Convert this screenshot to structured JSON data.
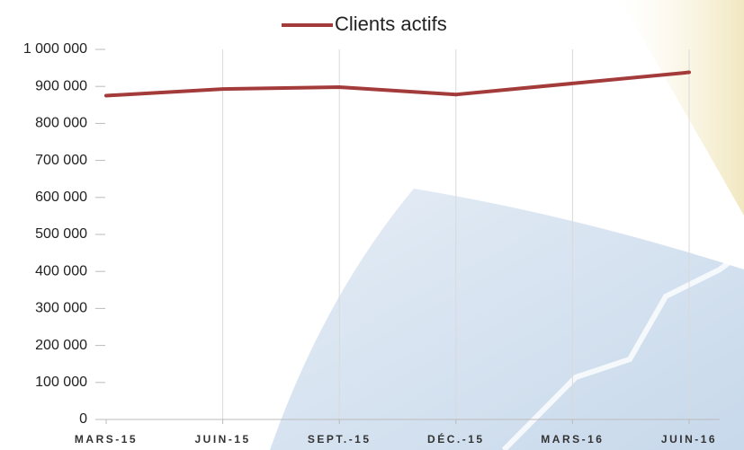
{
  "chart_data": {
    "type": "line",
    "categories": [
      "MARS-15",
      "JUIN-15",
      "SEPT.-15",
      "DÉC.-15",
      "MARS-16",
      "JUIN-16"
    ],
    "series": [
      {
        "name": "Clients actifs",
        "color": "#a33b3a",
        "values": [
          875000,
          893000,
          898000,
          878000,
          908000,
          938000
        ]
      }
    ],
    "ylim": [
      0,
      1000000
    ],
    "yticks": [
      0,
      {
        "value": 100000,
        "label": "100 000"
      },
      {
        "value": 200000,
        "label": "200 000"
      },
      {
        "value": 300000,
        "label": "300 000"
      },
      {
        "value": 400000,
        "label": "400 000"
      },
      {
        "value": 500000,
        "label": "500 000"
      },
      {
        "value": 600000,
        "label": "600 000"
      },
      {
        "value": 700000,
        "label": "700 000"
      },
      {
        "value": 800000,
        "label": "800 000"
      },
      {
        "value": 900000,
        "label": "900 000"
      },
      {
        "value": 1000000,
        "label": "1 000 000"
      }
    ],
    "grid": true,
    "legend": "top"
  }
}
